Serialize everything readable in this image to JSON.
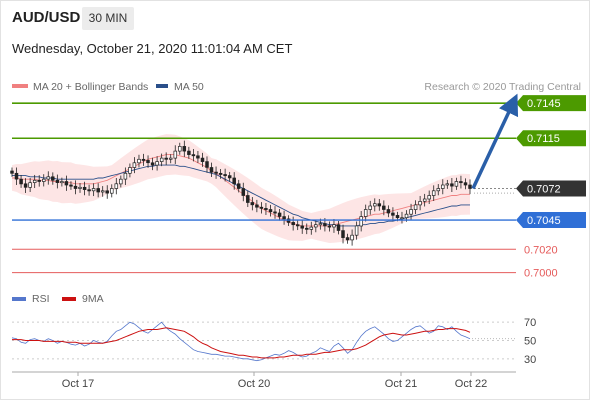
{
  "header": {
    "symbol": "AUD/USD",
    "timeframe": "30 MIN",
    "timestamp": "Wednesday, October 21, 2020 11:01:04 AM CET"
  },
  "legend": {
    "bollinger": "MA 20 + Bollinger Bands",
    "ma50": "MA 50",
    "credit": "Research © 2020 Trading Central",
    "rsi": "RSI",
    "rsi_ma": "9MA"
  },
  "colors": {
    "green": "#4c9a00",
    "blue": "#2f6fd6",
    "red": "#e55b5b",
    "dark": "#333333",
    "arrow": "#2a5fa8",
    "bollinger": "#f08080",
    "ma50": "#2a4f8a",
    "rsi": "#5577cc",
    "rsi_ma": "#cc1111"
  },
  "chart_data": [
    {
      "type": "candlestick",
      "title": "AUD/USD 30 MIN",
      "x_ticks": [
        "Oct 17",
        "Oct 20",
        "Oct 21",
        "Oct 22"
      ],
      "ylim": [
        0.6992,
        0.7152
      ],
      "levels": [
        {
          "label": "0.7145",
          "value": 0.7145,
          "kind": "resistance",
          "color": "#4c9a00"
        },
        {
          "label": "0.7115",
          "value": 0.7115,
          "kind": "resistance",
          "color": "#4c9a00"
        },
        {
          "label": "0.7072",
          "value": 0.7072,
          "kind": "last",
          "color": "#333333"
        },
        {
          "label": "0.7045",
          "value": 0.7045,
          "kind": "pivot",
          "color": "#2f6fd6"
        },
        {
          "label": "0.7020",
          "value": 0.702,
          "kind": "support",
          "color": "#e55b5b"
        },
        {
          "label": "0.7000",
          "value": 0.7,
          "kind": "support",
          "color": "#e55b5b"
        }
      ],
      "close_series": [
        0.7085,
        0.708,
        0.7076,
        0.7073,
        0.7077,
        0.7079,
        0.7078,
        0.708,
        0.7082,
        0.7079,
        0.7077,
        0.7078,
        0.7075,
        0.7074,
        0.7072,
        0.7073,
        0.7071,
        0.707,
        0.7072,
        0.7069,
        0.707,
        0.7068,
        0.7072,
        0.7076,
        0.708,
        0.7085,
        0.709,
        0.7094,
        0.7097,
        0.7096,
        0.7094,
        0.7092,
        0.7095,
        0.7098,
        0.7097,
        0.7098,
        0.7104,
        0.7108,
        0.7104,
        0.7101,
        0.71,
        0.7098,
        0.7095,
        0.709,
        0.7086,
        0.7085,
        0.7084,
        0.7083,
        0.7081,
        0.7076,
        0.7072,
        0.7066,
        0.706,
        0.7058,
        0.7056,
        0.7055,
        0.7054,
        0.7052,
        0.7051,
        0.7048,
        0.7046,
        0.7043,
        0.7041,
        0.704,
        0.7038,
        0.7037,
        0.7039,
        0.7041,
        0.7042,
        0.704,
        0.7039,
        0.7041,
        0.7036,
        0.703,
        0.7028,
        0.7032,
        0.704,
        0.7048,
        0.7054,
        0.7057,
        0.7059,
        0.7057,
        0.7054,
        0.7051,
        0.7049,
        0.7047,
        0.7047,
        0.705,
        0.7054,
        0.7058,
        0.7061,
        0.7063,
        0.7066,
        0.707,
        0.7072,
        0.7075,
        0.7076,
        0.7074,
        0.7078,
        0.7077,
        0.7075,
        0.7072
      ],
      "bb_mid": [
        0.7081,
        0.7081,
        0.708,
        0.708,
        0.708,
        0.708,
        0.7079,
        0.7079,
        0.7079,
        0.7078,
        0.7078,
        0.7077,
        0.7077,
        0.7077,
        0.7076,
        0.7076,
        0.7076,
        0.7076,
        0.7076,
        0.7077,
        0.7078,
        0.7079,
        0.7081,
        0.7083,
        0.7085,
        0.7087,
        0.7089,
        0.7091,
        0.7093,
        0.7095,
        0.7097,
        0.7098,
        0.7099,
        0.71,
        0.7101,
        0.7101,
        0.7101,
        0.71,
        0.7099,
        0.7098,
        0.7096,
        0.7094,
        0.7092,
        0.709,
        0.7087,
        0.7085,
        0.7082,
        0.7079,
        0.7076,
        0.7073,
        0.707,
        0.7067,
        0.7064,
        0.7061,
        0.7058,
        0.7055,
        0.7053,
        0.7051,
        0.7049,
        0.7047,
        0.7045,
        0.7043,
        0.7042,
        0.7041,
        0.704,
        0.704,
        0.704,
        0.704,
        0.704,
        0.704,
        0.704,
        0.7041,
        0.7042,
        0.7043,
        0.7044,
        0.7045,
        0.7046,
        0.7047,
        0.7048,
        0.7049,
        0.705,
        0.705,
        0.7051,
        0.7052,
        0.7053,
        0.7054,
        0.7055,
        0.7056,
        0.7057,
        0.7058,
        0.7059,
        0.706,
        0.7061,
        0.7062,
        0.7063,
        0.7064,
        0.7065,
        0.7066,
        0.7066,
        0.7067,
        0.7067,
        0.7067
      ],
      "bb_width": 0.0011,
      "ma50": [
        0.7083,
        0.7083,
        0.7083,
        0.7083,
        0.7082,
        0.7082,
        0.7082,
        0.7081,
        0.7081,
        0.7081,
        0.708,
        0.708,
        0.708,
        0.708,
        0.708,
        0.708,
        0.708,
        0.708,
        0.708,
        0.7081,
        0.7081,
        0.7082,
        0.7083,
        0.7084,
        0.7085,
        0.7086,
        0.7087,
        0.7088,
        0.7089,
        0.709,
        0.7091,
        0.7091,
        0.7092,
        0.7092,
        0.7092,
        0.7092,
        0.7092,
        0.7091,
        0.7091,
        0.709,
        0.7089,
        0.7088,
        0.7087,
        0.7086,
        0.7085,
        0.7084,
        0.7082,
        0.708,
        0.7078,
        0.7076,
        0.7074,
        0.7072,
        0.707,
        0.7068,
        0.7066,
        0.7064,
        0.7062,
        0.706,
        0.7058,
        0.7056,
        0.7054,
        0.7052,
        0.705,
        0.7049,
        0.7047,
        0.7046,
        0.7045,
        0.7044,
        0.7043,
        0.7042,
        0.7041,
        0.7041,
        0.704,
        0.704,
        0.704,
        0.704,
        0.704,
        0.7041,
        0.7041,
        0.7042,
        0.7042,
        0.7043,
        0.7043,
        0.7044,
        0.7044,
        0.7045,
        0.7046,
        0.7047,
        0.7048,
        0.7049,
        0.705,
        0.7051,
        0.7052,
        0.7053,
        0.7054,
        0.7055,
        0.7056,
        0.7057,
        0.7057,
        0.7058,
        0.7058,
        0.7058
      ],
      "projection": {
        "from": 0.7072,
        "to": 0.7145
      }
    },
    {
      "type": "line",
      "title": "RSI",
      "ylim": [
        20,
        80
      ],
      "y_ticks": [
        "70",
        "50",
        "30"
      ],
      "series": [
        {
          "name": "RSI",
          "values": [
            53,
            52,
            48,
            47,
            51,
            52,
            50,
            49,
            52,
            50,
            47,
            49,
            48,
            46,
            45,
            47,
            44,
            46,
            50,
            48,
            47,
            49,
            55,
            60,
            62,
            66,
            70,
            68,
            64,
            60,
            58,
            62,
            66,
            70,
            64,
            60,
            57,
            52,
            48,
            44,
            40,
            38,
            37,
            36,
            35,
            35,
            34,
            33,
            33,
            32,
            31,
            30,
            30,
            29,
            28,
            29,
            31,
            33,
            35,
            34,
            36,
            39,
            37,
            34,
            32,
            33,
            36,
            38,
            42,
            40,
            38,
            44,
            47,
            42,
            36,
            40,
            48,
            55,
            60,
            63,
            65,
            61,
            57,
            52,
            49,
            50,
            54,
            58,
            62,
            65,
            66,
            62,
            58,
            60,
            66,
            65,
            62,
            65,
            60,
            56,
            54,
            52
          ]
        },
        {
          "name": "9MA",
          "values": [
            51,
            51,
            51,
            50,
            50,
            50,
            50,
            49,
            49,
            49,
            49,
            49,
            48,
            48,
            48,
            47,
            47,
            47,
            47,
            47,
            47,
            48,
            49,
            50,
            52,
            54,
            56,
            58,
            60,
            61,
            62,
            62,
            62,
            63,
            64,
            63,
            62,
            61,
            60,
            57,
            54,
            50,
            47,
            45,
            42,
            40,
            38,
            37,
            36,
            35,
            34,
            34,
            33,
            32,
            32,
            31,
            31,
            31,
            31,
            32,
            32,
            33,
            34,
            34,
            34,
            35,
            35,
            35,
            36,
            37,
            37,
            38,
            39,
            40,
            40,
            40,
            41,
            43,
            45,
            48,
            51,
            54,
            56,
            57,
            58,
            57,
            56,
            56,
            57,
            58,
            59,
            60,
            60,
            61,
            62,
            62,
            63,
            63,
            63,
            62,
            61,
            59
          ]
        }
      ]
    }
  ]
}
